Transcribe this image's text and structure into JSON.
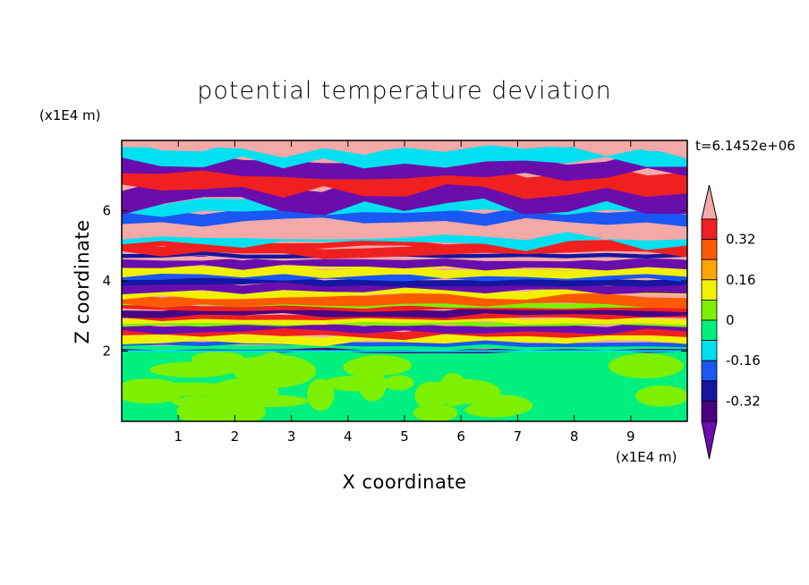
{
  "chart_data": {
    "type": "heatmap",
    "title": "potential temperature deviation",
    "xlabel": "X coordinate",
    "ylabel": "Z coordinate",
    "x_unit": "(x1E4 m)",
    "y_unit": "(x1E4 m)",
    "annotation": "t=6.1452e+06",
    "xlim": [
      0,
      10
    ],
    "ylim": [
      0,
      8
    ],
    "x_ticks": [
      "1",
      "2",
      "3",
      "4",
      "5",
      "6",
      "7",
      "8",
      "9"
    ],
    "y_ticks": [
      "2",
      "4",
      "6"
    ],
    "colorbar": {
      "labels": [
        "0.32",
        "0.16",
        "0",
        "-0.16",
        "-0.32"
      ],
      "label_values": [
        0.32,
        0.16,
        0,
        -0.16,
        -0.32
      ],
      "levels": [
        -0.4,
        -0.32,
        -0.24,
        -0.16,
        -0.08,
        0,
        0.08,
        0.16,
        0.24,
        0.32,
        0.4
      ],
      "colors": [
        "#6a0dad",
        "#4b0082",
        "#1515a0",
        "#1a57f5",
        "#00e0f0",
        "#00f080",
        "#7df000",
        "#f0f000",
        "#ffa500",
        "#ff5a00",
        "#f02020",
        "#f4a8a8"
      ],
      "extend": "both"
    },
    "layers": [
      {
        "z_range": [
          0,
          2.0
        ],
        "values": [
          0.0,
          0.08
        ],
        "description_colors": [
          "#00f080",
          "#7df000"
        ]
      },
      {
        "z_range": [
          2.0,
          5.0
        ],
        "values": [
          -0.4,
          0.4
        ]
      },
      {
        "z_range": [
          5.0,
          8.0
        ],
        "values": [
          -0.4,
          0.4
        ],
        "dominant": [
          "#6a0dad",
          "#f4a8a8"
        ]
      }
    ]
  }
}
